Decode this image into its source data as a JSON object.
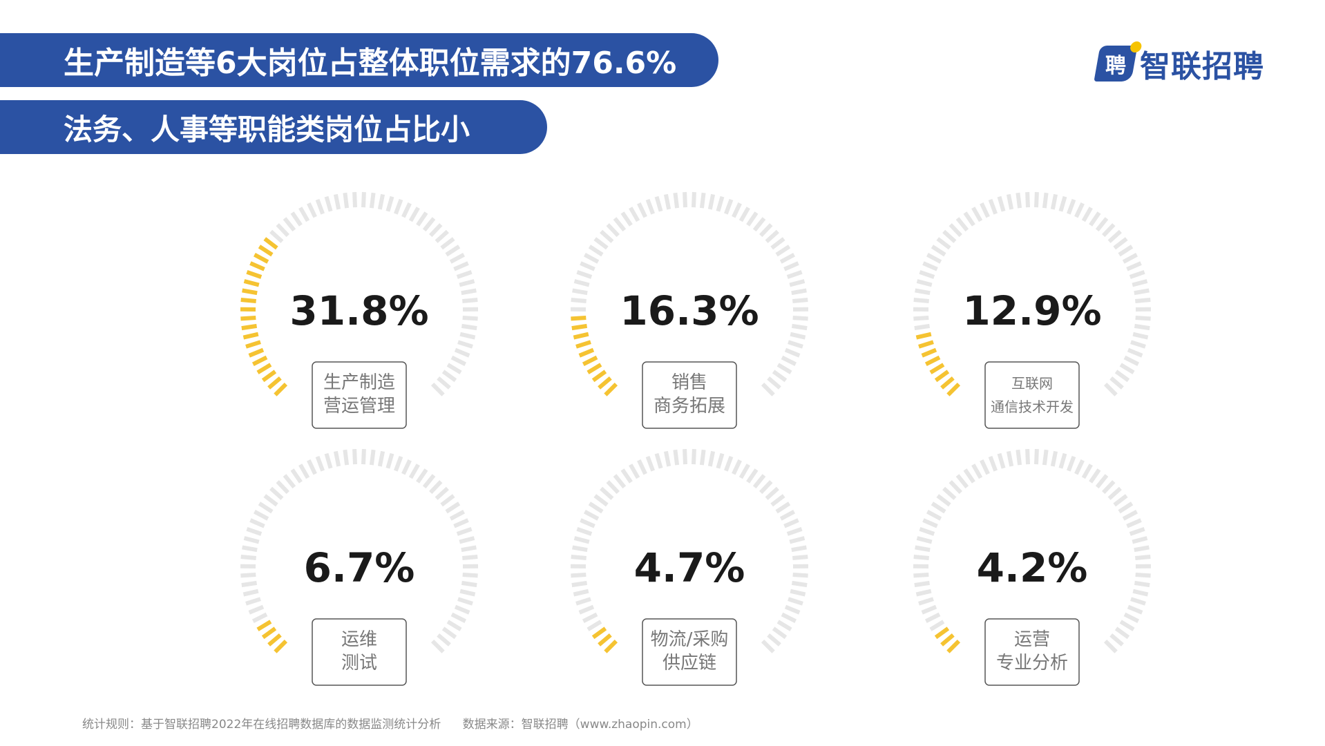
{
  "headline": {
    "line1": "生产制造等6大岗位占整体职位需求的76.6%",
    "line2": "法务、人事等职能类岗位占比小"
  },
  "logo": {
    "text": "智联招聘",
    "mark_glyph": "聘"
  },
  "colors": {
    "banner": "#2b52a3",
    "gauge_fill": "#f5c332",
    "gauge_track": "#e6e6e6",
    "value_text": "#1a1a1a",
    "label_text": "#777777"
  },
  "chart_data": {
    "type": "gauge",
    "value_unit": "%",
    "gauges": [
      {
        "value": 31.8,
        "display": "31.8%",
        "label_lines": [
          "生产制造",
          "营运管理"
        ]
      },
      {
        "value": 16.3,
        "display": "16.3%",
        "label_lines": [
          "销售",
          "商务拓展"
        ]
      },
      {
        "value": 12.9,
        "display": "12.9%",
        "label_lines": [
          "互联网",
          "通信技术开发"
        ]
      },
      {
        "value": 6.7,
        "display": "6.7%",
        "label_lines": [
          "运维",
          "测试"
        ]
      },
      {
        "value": 4.7,
        "display": "4.7%",
        "label_lines": [
          "物流/采购",
          "供应链"
        ]
      },
      {
        "value": 4.2,
        "display": "4.2%",
        "label_lines": [
          "运营",
          "专业分析"
        ]
      }
    ]
  },
  "footer": {
    "rule": "统计规则：基于智联招聘2022年在线招聘数据库的数据监测统计分析",
    "source": "数据来源：智联招聘（www.zhaopin.com）"
  }
}
